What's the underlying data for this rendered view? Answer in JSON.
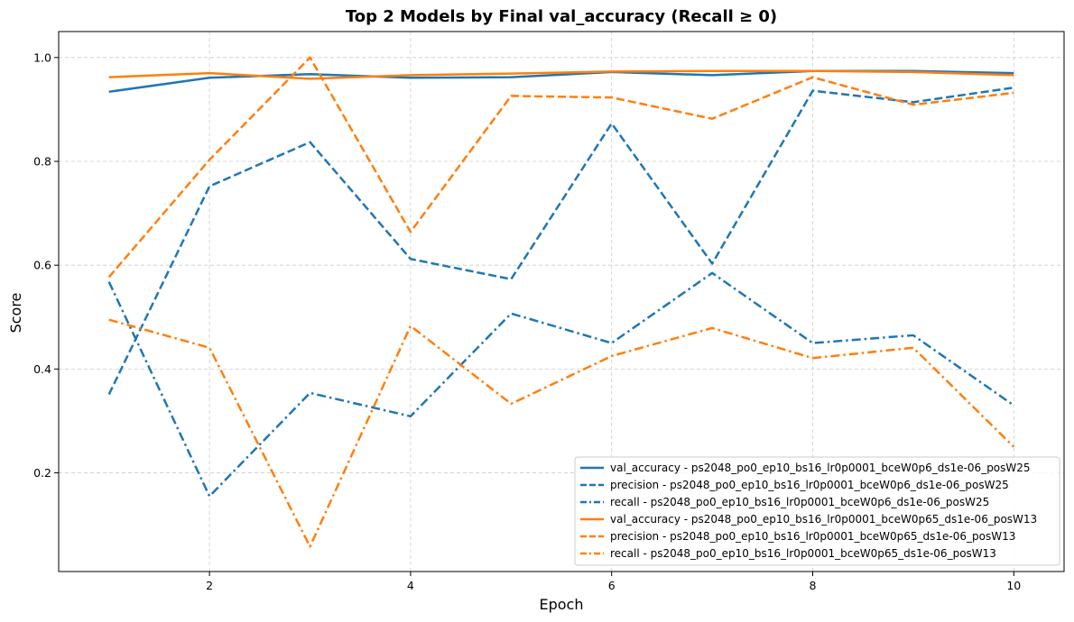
{
  "chart_data": {
    "type": "line",
    "title": "Top 2 Models by Final val_accuracy (Recall ≥ 0)",
    "xlabel": "Epoch",
    "ylabel": "Score",
    "xlim": [
      0.5,
      10.5
    ],
    "ylim": [
      0.01,
      1.05
    ],
    "xticks": [
      2,
      4,
      6,
      8,
      10
    ],
    "yticks": [
      0.2,
      0.4,
      0.6,
      0.8,
      1.0
    ],
    "grid": true,
    "legend_position": "lower-right",
    "x": [
      1,
      2,
      3,
      4,
      5,
      6,
      7,
      8,
      9,
      10
    ],
    "series": [
      {
        "name": "val_accuracy - ps2048_po0_ep10_bs16_lr0p0001_bceW0p6_ds1e-06_posW25",
        "color": "#1f77b4",
        "dash": "solid",
        "values": [
          0.934,
          0.961,
          0.968,
          0.961,
          0.962,
          0.972,
          0.966,
          0.974,
          0.974,
          0.97
        ]
      },
      {
        "name": "precision - ps2048_po0_ep10_bs16_lr0p0001_bceW0p6_ds1e-06_posW25",
        "color": "#1f77b4",
        "dash": "dashed",
        "values": [
          0.351,
          0.752,
          0.837,
          0.612,
          0.573,
          0.873,
          0.603,
          0.936,
          0.914,
          0.942
        ]
      },
      {
        "name": "recall - ps2048_po0_ep10_bs16_lr0p0001_bceW0p6_ds1e-06_posW25",
        "color": "#1f77b4",
        "dash": "dashdot",
        "values": [
          0.568,
          0.155,
          0.354,
          0.309,
          0.507,
          0.45,
          0.585,
          0.45,
          0.465,
          0.33
        ]
      },
      {
        "name": "val_accuracy - ps2048_po0_ep10_bs16_lr0p0001_bceW0p65_ds1e-06_posW13",
        "color": "#ff7f0e",
        "dash": "solid",
        "values": [
          0.962,
          0.97,
          0.959,
          0.966,
          0.969,
          0.973,
          0.974,
          0.974,
          0.972,
          0.966
        ]
      },
      {
        "name": "precision - ps2048_po0_ep10_bs16_lr0p0001_bceW0p65_ds1e-06_posW13",
        "color": "#ff7f0e",
        "dash": "dashed",
        "values": [
          0.577,
          0.803,
          1.0,
          0.664,
          0.926,
          0.923,
          0.882,
          0.962,
          0.909,
          0.932
        ]
      },
      {
        "name": "recall - ps2048_po0_ep10_bs16_lr0p0001_bceW0p65_ds1e-06_posW13",
        "color": "#ff7f0e",
        "dash": "dashdot",
        "values": [
          0.495,
          0.441,
          0.058,
          0.483,
          0.333,
          0.425,
          0.479,
          0.421,
          0.441,
          0.25
        ]
      }
    ]
  }
}
